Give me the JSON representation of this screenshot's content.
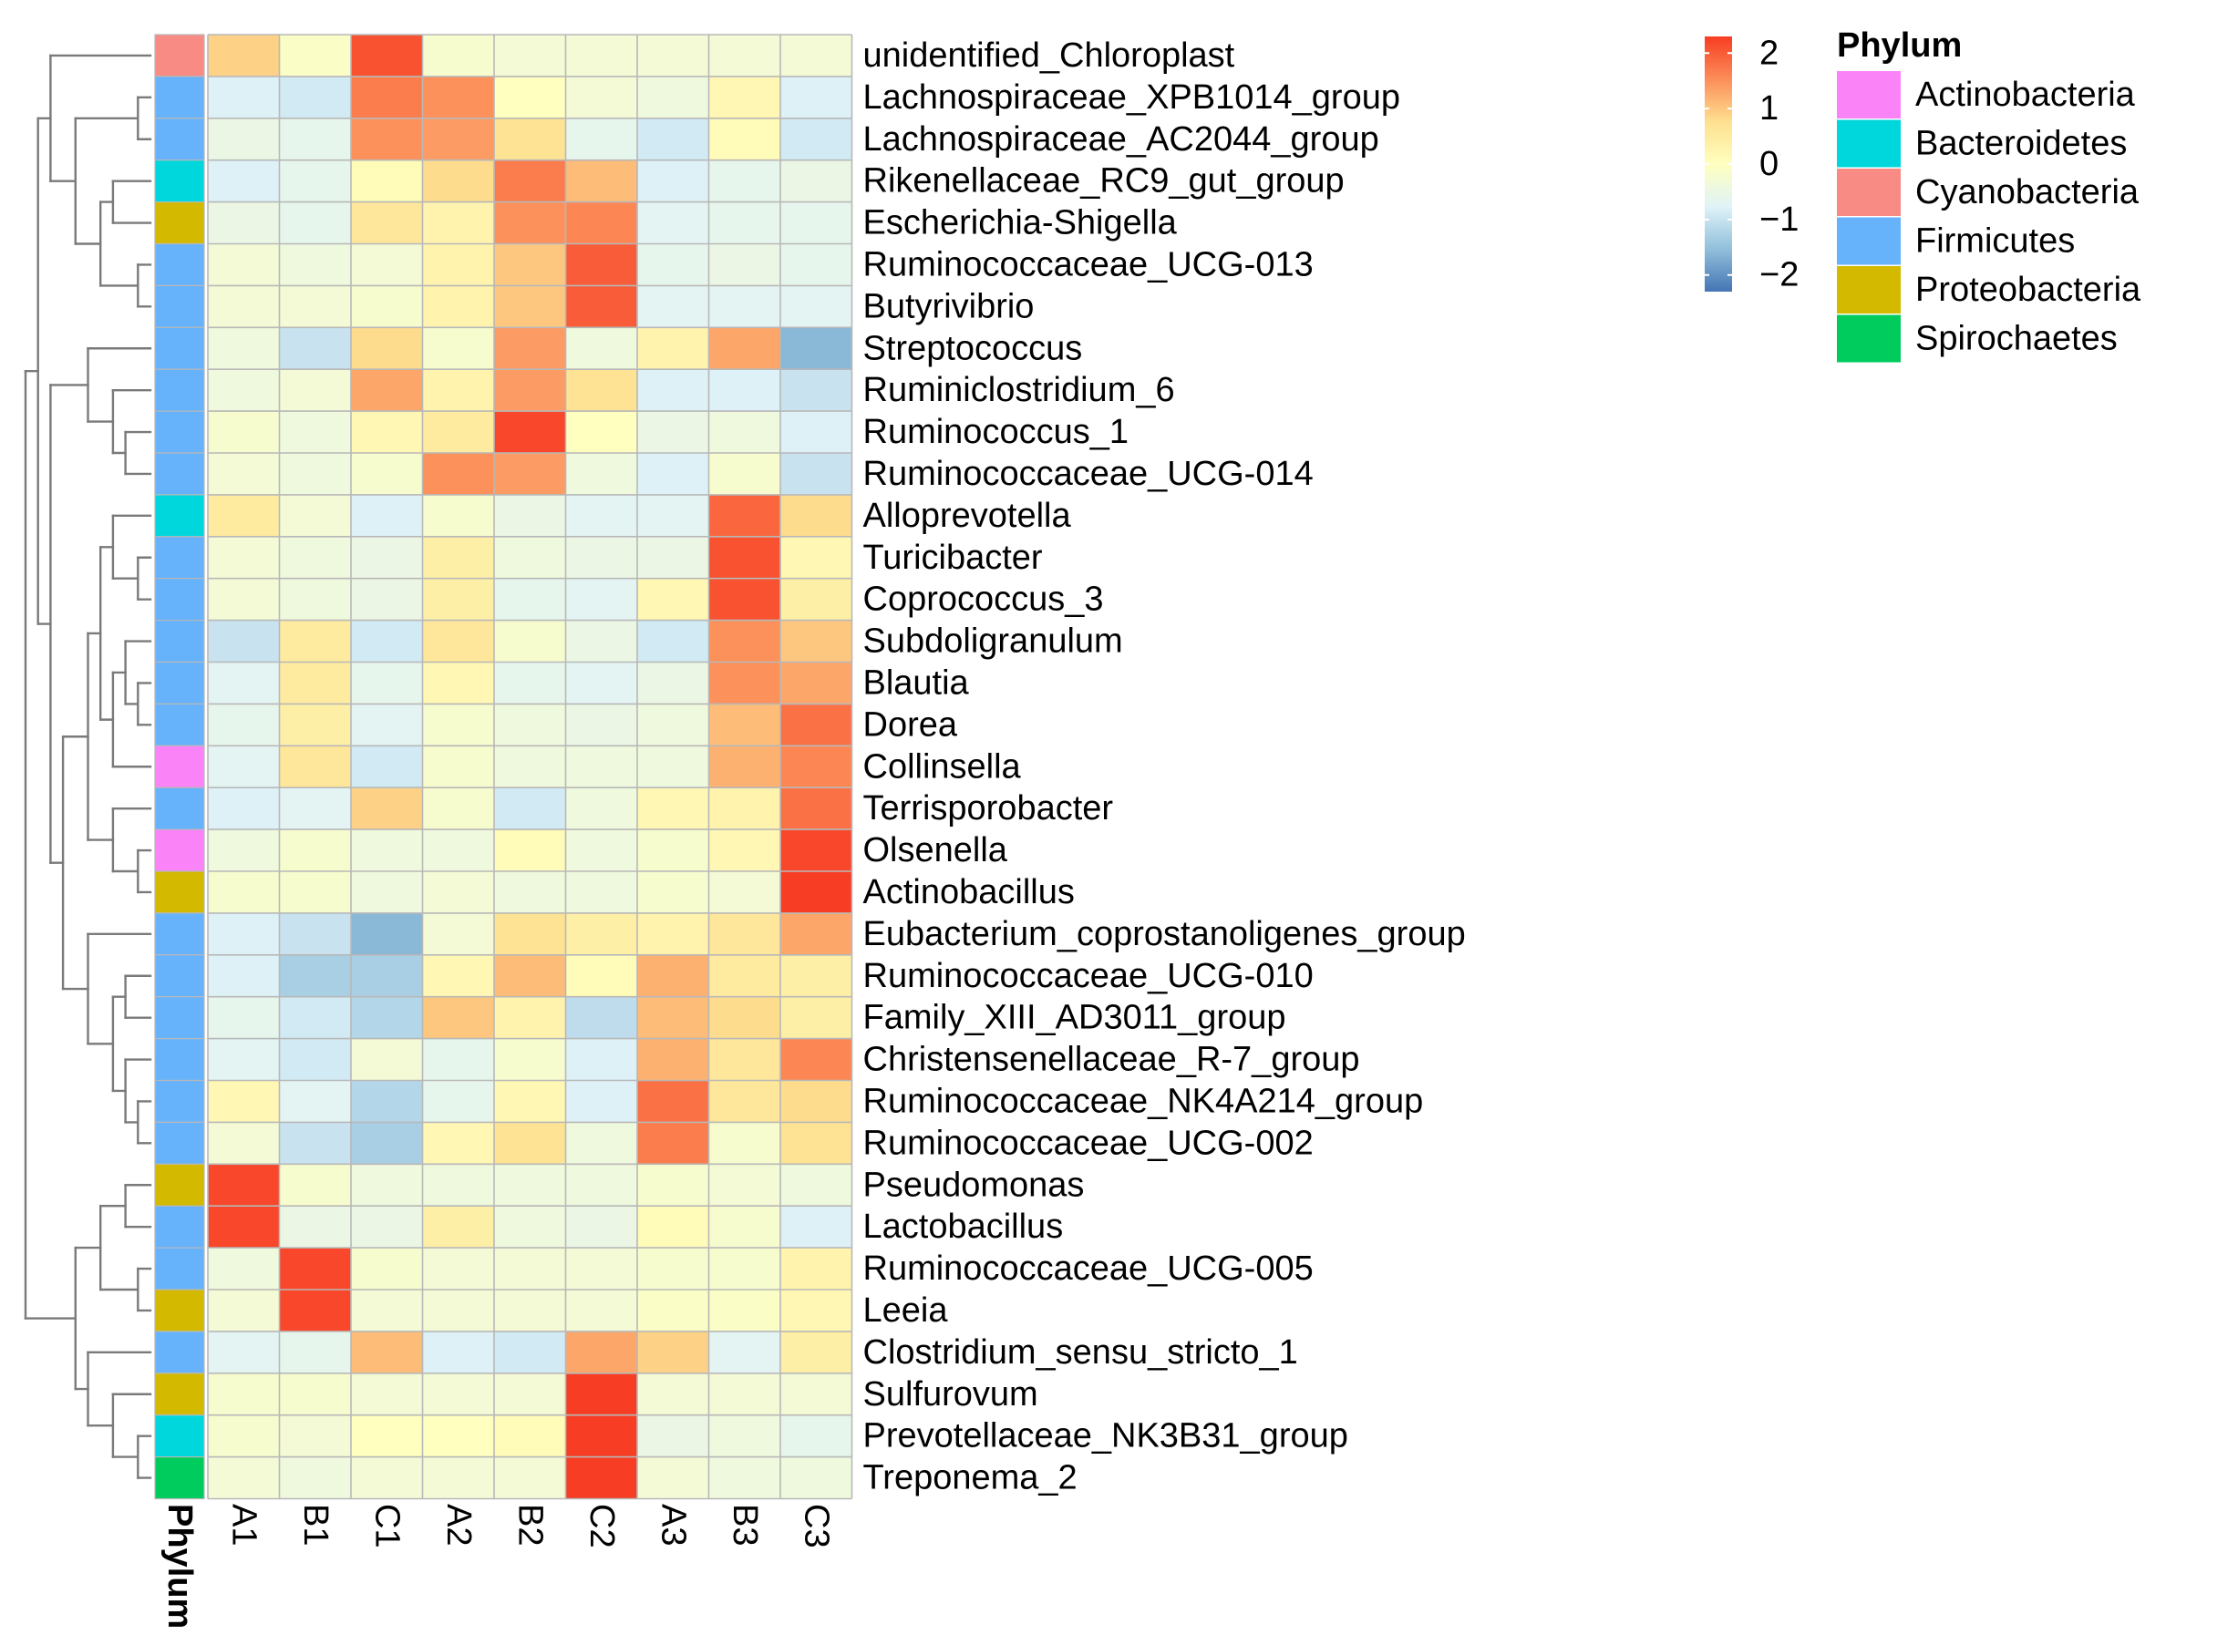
{
  "chart_data": {
    "type": "heatmap",
    "title": "",
    "columns": [
      "A1",
      "B1",
      "C1",
      "A2",
      "B2",
      "C2",
      "A3",
      "B3",
      "C3"
    ],
    "rows": [
      {
        "name": "unidentified_Chloroplast",
        "phylum": "Cyanobacteria",
        "values": [
          0.9,
          -0.1,
          2.1,
          -0.2,
          -0.3,
          -0.3,
          -0.3,
          -0.3,
          -0.3
        ]
      },
      {
        "name": "Lachnospiraceae_XPB1014_group",
        "phylum": "Firmicutes",
        "values": [
          -0.8,
          -0.9,
          1.7,
          1.5,
          0.0,
          -0.3,
          -0.4,
          0.2,
          -0.8
        ]
      },
      {
        "name": "Lachnospiraceae_AC2044_group",
        "phylum": "Firmicutes",
        "values": [
          -0.5,
          -0.6,
          1.5,
          1.4,
          0.7,
          -0.6,
          -0.9,
          0.1,
          -0.9
        ]
      },
      {
        "name": "Rikenellaceae_RC9_gut_group",
        "phylum": "Bacteroidetes",
        "values": [
          -0.8,
          -0.6,
          0.1,
          0.8,
          1.7,
          1.1,
          -0.8,
          -0.6,
          -0.5
        ]
      },
      {
        "name": "Escherichia-Shigella",
        "phylum": "Proteobacteria",
        "values": [
          -0.5,
          -0.6,
          0.6,
          0.3,
          1.5,
          1.6,
          -0.7,
          -0.6,
          -0.6
        ]
      },
      {
        "name": "Ruminococcaceae_UCG-013",
        "phylum": "Firmicutes",
        "values": [
          -0.3,
          -0.4,
          -0.3,
          0.3,
          1.0,
          2.0,
          -0.6,
          -0.5,
          -0.6
        ]
      },
      {
        "name": "Butyrivibrio",
        "phylum": "Firmicutes",
        "values": [
          -0.3,
          -0.3,
          -0.2,
          0.3,
          1.0,
          2.0,
          -0.7,
          -0.7,
          -0.7
        ]
      },
      {
        "name": "Streptococcus",
        "phylum": "Firmicutes",
        "values": [
          -0.4,
          -1.0,
          0.8,
          -0.2,
          1.4,
          -0.4,
          0.3,
          1.3,
          -1.6
        ]
      },
      {
        "name": "Ruminiclostridium_6",
        "phylum": "Firmicutes",
        "values": [
          -0.4,
          -0.3,
          1.3,
          0.3,
          1.4,
          0.7,
          -0.8,
          -0.8,
          -1.0
        ]
      },
      {
        "name": "Ruminococcus_1",
        "phylum": "Firmicutes",
        "values": [
          -0.2,
          -0.4,
          0.2,
          0.5,
          2.2,
          0.0,
          -0.5,
          -0.4,
          -0.8
        ]
      },
      {
        "name": "Ruminococcaceae_UCG-014",
        "phylum": "Firmicutes",
        "values": [
          -0.3,
          -0.4,
          -0.2,
          1.5,
          1.4,
          -0.4,
          -0.8,
          -0.2,
          -1.0
        ]
      },
      {
        "name": "Alloprevotella",
        "phylum": "Bacteroidetes",
        "values": [
          0.5,
          -0.3,
          -0.8,
          -0.2,
          -0.5,
          -0.7,
          -0.7,
          1.9,
          0.8
        ]
      },
      {
        "name": "Turicibacter",
        "phylum": "Firmicutes",
        "values": [
          -0.3,
          -0.4,
          -0.5,
          0.4,
          -0.4,
          -0.5,
          -0.5,
          2.1,
          0.2
        ]
      },
      {
        "name": "Coprococcus_3",
        "phylum": "Firmicutes",
        "values": [
          -0.3,
          -0.4,
          -0.5,
          0.4,
          -0.6,
          -0.7,
          0.2,
          2.1,
          0.4
        ]
      },
      {
        "name": "Subdoligranulum",
        "phylum": "Firmicutes",
        "values": [
          -1.0,
          0.5,
          -0.9,
          0.6,
          -0.2,
          -0.5,
          -0.9,
          1.5,
          1.0
        ]
      },
      {
        "name": "Blautia",
        "phylum": "Firmicutes",
        "values": [
          -0.7,
          0.5,
          -0.6,
          0.2,
          -0.6,
          -0.7,
          -0.5,
          1.5,
          1.3
        ]
      },
      {
        "name": "Dorea",
        "phylum": "Firmicutes",
        "values": [
          -0.6,
          0.4,
          -0.7,
          -0.2,
          -0.4,
          -0.5,
          -0.4,
          1.1,
          1.8
        ]
      },
      {
        "name": "Collinsella",
        "phylum": "Actinobacteria",
        "values": [
          -0.7,
          0.6,
          -0.9,
          -0.2,
          -0.4,
          -0.4,
          -0.4,
          1.2,
          1.6
        ]
      },
      {
        "name": "Terrisporobacter",
        "phylum": "Firmicutes",
        "values": [
          -0.8,
          -0.7,
          0.9,
          -0.2,
          -0.9,
          -0.4,
          0.2,
          0.3,
          1.8
        ]
      },
      {
        "name": "Olsenella",
        "phylum": "Actinobacteria",
        "values": [
          -0.4,
          -0.2,
          -0.4,
          -0.4,
          0.1,
          -0.4,
          -0.2,
          0.2,
          2.2
        ]
      },
      {
        "name": "Actinobacillus",
        "phylum": "Proteobacteria",
        "values": [
          -0.2,
          -0.2,
          -0.4,
          -0.3,
          -0.4,
          -0.4,
          -0.2,
          -0.3,
          2.3
        ]
      },
      {
        "name": "Eubacterium_coprostanoligenes_group",
        "phylum": "Firmicutes",
        "values": [
          -0.8,
          -1.0,
          -1.6,
          -0.3,
          0.7,
          0.4,
          0.3,
          0.6,
          1.3
        ]
      },
      {
        "name": "Ruminococcaceae_UCG-010",
        "phylum": "Firmicutes",
        "values": [
          -0.8,
          -1.3,
          -1.3,
          0.2,
          1.1,
          0.1,
          1.2,
          0.5,
          0.4
        ]
      },
      {
        "name": "Family_XIII_AD3011_group",
        "phylum": "Firmicutes",
        "values": [
          -0.6,
          -0.9,
          -1.2,
          1.0,
          0.3,
          -1.1,
          1.1,
          0.8,
          0.4
        ]
      },
      {
        "name": "Christensenellaceae_R-7_group",
        "phylum": "Firmicutes",
        "values": [
          -0.7,
          -0.9,
          -0.3,
          -0.6,
          -0.2,
          -0.8,
          1.2,
          0.6,
          1.6
        ]
      },
      {
        "name": "Ruminococcaceae_NK4A214_group",
        "phylum": "Firmicutes",
        "values": [
          0.2,
          -0.7,
          -1.2,
          -0.6,
          0.2,
          -0.8,
          1.8,
          0.6,
          0.8
        ]
      },
      {
        "name": "Ruminococcaceae_UCG-002",
        "phylum": "Firmicutes",
        "values": [
          -0.3,
          -1.0,
          -1.3,
          0.2,
          0.7,
          -0.4,
          1.7,
          -0.2,
          0.7
        ]
      },
      {
        "name": "Pseudomonas",
        "phylum": "Proteobacteria",
        "values": [
          2.2,
          -0.2,
          -0.4,
          -0.4,
          -0.4,
          -0.4,
          -0.2,
          -0.3,
          -0.4
        ]
      },
      {
        "name": "Lactobacillus",
        "phylum": "Firmicutes",
        "values": [
          2.2,
          -0.5,
          -0.5,
          0.4,
          -0.4,
          -0.5,
          0.1,
          -0.2,
          -0.8
        ]
      },
      {
        "name": "Ruminococcaceae_UCG-005",
        "phylum": "Firmicutes",
        "values": [
          -0.4,
          2.2,
          -0.2,
          -0.3,
          -0.3,
          -0.3,
          -0.2,
          -0.2,
          0.3
        ]
      },
      {
        "name": "Leeia",
        "phylum": "Proteobacteria",
        "values": [
          -0.3,
          2.2,
          -0.3,
          -0.3,
          -0.3,
          -0.3,
          -0.1,
          -0.1,
          0.2
        ]
      },
      {
        "name": "Clostridium_sensu_stricto_1",
        "phylum": "Firmicutes",
        "values": [
          -0.7,
          -0.6,
          1.1,
          -0.8,
          -0.9,
          1.3,
          0.9,
          -0.7,
          0.4
        ]
      },
      {
        "name": "Sulfurovum",
        "phylum": "Proteobacteria",
        "values": [
          -0.2,
          -0.2,
          -0.3,
          -0.3,
          -0.3,
          2.3,
          -0.3,
          -0.3,
          -0.3
        ]
      },
      {
        "name": "Prevotellaceae_NK3B31_group",
        "phylum": "Bacteroidetes",
        "values": [
          -0.2,
          -0.3,
          0.0,
          0.0,
          0.1,
          2.3,
          -0.5,
          -0.4,
          -0.6
        ]
      },
      {
        "name": "Treponema_2",
        "phylum": "Spirochaetes",
        "values": [
          -0.3,
          -0.4,
          -0.3,
          -0.3,
          -0.3,
          2.3,
          -0.3,
          -0.4,
          -0.4
        ]
      }
    ],
    "color_scale": {
      "min": -2.3,
      "max": 2.3,
      "stops": [
        "#4575b4",
        "#91bfdb",
        "#e0f3f8",
        "#ffffbf",
        "#fee090",
        "#fc8d59",
        "#f73d23"
      ],
      "legend_ticks": [
        "2",
        "1",
        "0",
        "−1",
        "−2"
      ],
      "legend_tick_values": [
        2,
        1,
        0,
        -1,
        -2
      ]
    },
    "annotation": {
      "title": "Phylum",
      "axis_label": "Phylum",
      "categories": [
        {
          "name": "Actinobacteria",
          "color": "#fb83f8"
        },
        {
          "name": "Bacteroidetes",
          "color": "#00d7dc"
        },
        {
          "name": "Cyanobacteria",
          "color": "#f98b85"
        },
        {
          "name": "Firmicutes",
          "color": "#66b2fb"
        },
        {
          "name": "Proteobacteria",
          "color": "#d3ba00"
        },
        {
          "name": "Spirochaetes",
          "color": "#00cc5e"
        }
      ]
    },
    "row_dendrogram": {
      "leaf_order": [
        0,
        1,
        2,
        3,
        4,
        5,
        6,
        7,
        8,
        9,
        10,
        11,
        12,
        13,
        14,
        15,
        16,
        17,
        18,
        19,
        20,
        21,
        22,
        23,
        24,
        25,
        26,
        27,
        28,
        29,
        30,
        31,
        32,
        33,
        34
      ],
      "merges": [
        [
          [
            1
          ],
          [
            2
          ],
          1
        ],
        [
          [
            5
          ],
          [
            6
          ],
          1
        ],
        [
          [
            9
          ],
          [
            10
          ],
          2
        ],
        [
          [
            12
          ],
          [
            13
          ],
          1
        ],
        [
          [
            15
          ],
          [
            16
          ],
          1
        ],
        [
          [
            19
          ],
          [
            20
          ],
          1
        ],
        [
          [
            22
          ],
          [
            23
          ],
          2
        ],
        [
          [
            25
          ],
          [
            26
          ],
          1
        ],
        [
          [
            27
          ],
          [
            28
          ],
          2
        ],
        [
          [
            29
          ],
          [
            30
          ],
          1
        ],
        [
          [
            33
          ],
          [
            34
          ],
          1
        ],
        [
          [
            3
          ],
          [
            4
          ],
          3
        ],
        [
          [
            3,
            4
          ],
          [
            5,
            6
          ],
          4
        ],
        [
          [
            1,
            2
          ],
          [
            3,
            4,
            5,
            6
          ],
          6
        ],
        [
          [
            0
          ],
          [
            1,
            2,
            3,
            4,
            5,
            6
          ],
          8
        ],
        [
          [
            8
          ],
          [
            9,
            10
          ],
          3
        ],
        [
          [
            7
          ],
          [
            8,
            9,
            10
          ],
          5
        ],
        [
          [
            14
          ],
          [
            15,
            16
          ],
          2
        ],
        [
          [
            14,
            15,
            16
          ],
          [
            17
          ],
          3
        ],
        [
          [
            11
          ],
          [
            12,
            13
          ],
          3
        ],
        [
          [
            11,
            12,
            13
          ],
          [
            14,
            15,
            16,
            17
          ],
          4
        ],
        [
          [
            18
          ],
          [
            19,
            20
          ],
          3
        ],
        [
          [
            11,
            12,
            13,
            14,
            15,
            16,
            17
          ],
          [
            18,
            19,
            20
          ],
          5
        ],
        [
          [
            24
          ],
          [
            25,
            26
          ],
          2
        ],
        [
          [
            22,
            23
          ],
          [
            24,
            25,
            26
          ],
          3
        ],
        [
          [
            21
          ],
          [
            22,
            23,
            24,
            25,
            26
          ],
          5
        ],
        [
          [
            11,
            12,
            13,
            14,
            15,
            16,
            17,
            18,
            19,
            20
          ],
          [
            21,
            22,
            23,
            24,
            25,
            26
          ],
          7
        ],
        [
          [
            7,
            8,
            9,
            10
          ],
          [
            11,
            12,
            13,
            14,
            15,
            16,
            17,
            18,
            19,
            20,
            21,
            22,
            23,
            24,
            25,
            26
          ],
          8
        ],
        [
          [
            0,
            1,
            2,
            3,
            4,
            5,
            6
          ],
          [
            7,
            8,
            9,
            10,
            11,
            12,
            13,
            14,
            15,
            16,
            17,
            18,
            19,
            20,
            21,
            22,
            23,
            24,
            25,
            26
          ],
          9
        ],
        [
          [
            27,
            28
          ],
          [
            29,
            30
          ],
          4
        ],
        [
          [
            32
          ],
          [
            33,
            34
          ],
          3
        ],
        [
          [
            31
          ],
          [
            32,
            33,
            34
          ],
          5
        ],
        [
          [
            27,
            28,
            29,
            30
          ],
          [
            31,
            32,
            33,
            34
          ],
          6
        ],
        [
          [
            0,
            1,
            2,
            3,
            4,
            5,
            6,
            7,
            8,
            9,
            10,
            11,
            12,
            13,
            14,
            15,
            16,
            17,
            18,
            19,
            20,
            21,
            22,
            23,
            24,
            25,
            26
          ],
          [
            27,
            28,
            29,
            30,
            31,
            32,
            33,
            34
          ],
          10
        ]
      ]
    }
  }
}
